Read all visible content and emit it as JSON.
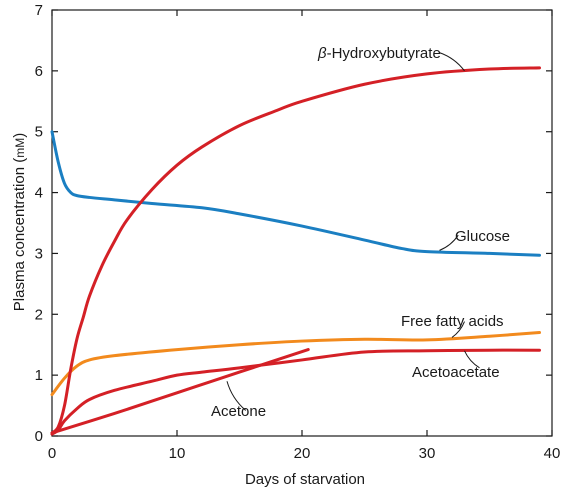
{
  "chart_data": {
    "type": "line",
    "xlabel": "Days of starvation",
    "ylabel": "Plasma concentration (mM)",
    "ylabel_parts": [
      "Plasma concentration (",
      "m",
      "M",
      ")"
    ],
    "xlim": [
      0,
      40
    ],
    "ylim": [
      0,
      7
    ],
    "xticks": [
      0,
      10,
      20,
      30,
      40
    ],
    "yticks": [
      0,
      1,
      2,
      3,
      4,
      5,
      6,
      7
    ],
    "grid": false,
    "legend": "none (labels on lines)",
    "series": [
      {
        "name": "β-Hydroxybutyrate",
        "label_parts": [
          "β",
          "-Hydroxybutyrate"
        ],
        "color": "#d42026",
        "x": [
          0,
          0.5,
          1,
          1.5,
          2,
          2.5,
          3,
          4,
          5,
          6,
          8,
          10,
          12,
          15,
          18,
          20,
          25,
          30,
          35,
          39
        ],
        "y": [
          0.05,
          0.15,
          0.5,
          1.1,
          1.6,
          1.95,
          2.3,
          2.8,
          3.2,
          3.55,
          4.05,
          4.45,
          4.75,
          5.1,
          5.35,
          5.5,
          5.78,
          5.95,
          6.03,
          6.05
        ]
      },
      {
        "name": "Glucose",
        "color": "#1b7fc2",
        "x": [
          0,
          0.5,
          1,
          1.5,
          2,
          3,
          5,
          8,
          12,
          15,
          20,
          25,
          28,
          30,
          35,
          39
        ],
        "y": [
          5.0,
          4.5,
          4.15,
          4.0,
          3.95,
          3.92,
          3.88,
          3.82,
          3.75,
          3.65,
          3.45,
          3.22,
          3.08,
          3.03,
          3.0,
          2.97
        ]
      },
      {
        "name": "Free fatty acids",
        "color": "#f28a1d",
        "x": [
          0,
          1,
          2,
          3,
          5,
          10,
          15,
          20,
          25,
          30,
          35,
          39
        ],
        "y": [
          0.68,
          0.95,
          1.15,
          1.25,
          1.32,
          1.42,
          1.5,
          1.56,
          1.59,
          1.58,
          1.64,
          1.7
        ]
      },
      {
        "name": "Acetoacetate",
        "color": "#d42026",
        "x": [
          0,
          0.5,
          1,
          2,
          3,
          5,
          8,
          10,
          12,
          15,
          20,
          25,
          30,
          35,
          39
        ],
        "y": [
          0.03,
          0.1,
          0.25,
          0.45,
          0.6,
          0.75,
          0.9,
          1.0,
          1.05,
          1.12,
          1.25,
          1.38,
          1.4,
          1.41,
          1.41
        ]
      },
      {
        "name": "Acetone",
        "color": "#d42026",
        "x": [
          0,
          5,
          10,
          15,
          20.5
        ],
        "y": [
          0.05,
          0.37,
          0.71,
          1.05,
          1.42
        ]
      }
    ],
    "annotations": [
      {
        "series": 0,
        "text": "β-Hydroxybutyrate",
        "leader_from": [
          31,
          6.3
        ],
        "leader_to": [
          33,
          6.0
        ]
      },
      {
        "series": 1,
        "text": "Glucose",
        "leader_from": [
          32.5,
          3.3
        ],
        "leader_to": [
          31,
          3.05
        ]
      },
      {
        "series": 2,
        "text": "Free fatty acids",
        "leader_from": [
          33,
          1.88
        ],
        "leader_to": [
          32,
          1.62
        ]
      },
      {
        "series": 3,
        "text": "Acetoacetate",
        "leader_from": [
          34.2,
          1.12
        ],
        "leader_to": [
          33,
          1.4
        ]
      },
      {
        "series": 4,
        "text": "Acetone",
        "leader_from": [
          15.5,
          0.42
        ],
        "leader_to": [
          14,
          0.9
        ]
      }
    ]
  }
}
